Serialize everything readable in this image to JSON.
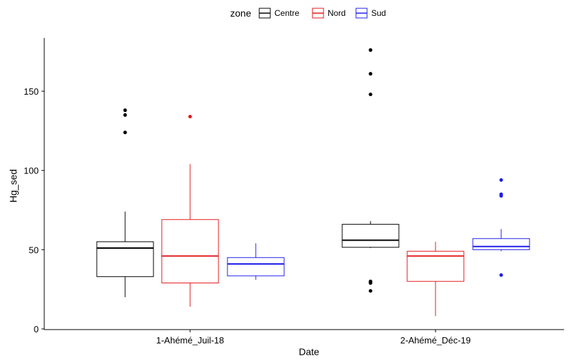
{
  "chart_data": {
    "type": "boxplot",
    "title": "",
    "xlabel": "Date",
    "ylabel": "Hg_sed",
    "ylim": [
      0,
      185
    ],
    "yticks": [
      0,
      50,
      100,
      150
    ],
    "categories": [
      "1-Ahémé_Juil-18",
      "2-Ahémé_Déc-19"
    ],
    "legend": {
      "title": "zone",
      "position": "top",
      "entries": [
        "Centre",
        "Nord",
        "Sud"
      ]
    },
    "grid": false,
    "series": [
      {
        "name": "Centre",
        "color": "#000000",
        "boxes": [
          {
            "category": "1-Ahémé_Juil-18",
            "whisker_low": 20,
            "q1": 33,
            "median": 51,
            "q3": 55,
            "whisker_high": 74,
            "outliers": [
              124,
              135,
              138
            ]
          },
          {
            "category": "2-Ahémé_Déc-19",
            "whisker_low": 51,
            "q1": 51.5,
            "median": 56,
            "q3": 66,
            "whisker_high": 68,
            "outliers": [
              24,
              29,
              30,
              148,
              161,
              176
            ]
          }
        ]
      },
      {
        "name": "Nord",
        "color": "#e31a1c",
        "boxes": [
          {
            "category": "1-Ahémé_Juil-18",
            "whisker_low": 14,
            "q1": 29,
            "median": 46,
            "q3": 69,
            "whisker_high": 104,
            "outliers": [
              134
            ]
          },
          {
            "category": "2-Ahémé_Déc-19",
            "whisker_low": 8,
            "q1": 30,
            "median": 46,
            "q3": 49,
            "whisker_high": 55,
            "outliers": []
          }
        ]
      },
      {
        "name": "Sud",
        "color": "#1f1fe8",
        "boxes": [
          {
            "category": "1-Ahémé_Juil-18",
            "whisker_low": 31,
            "q1": 33.5,
            "median": 41,
            "q3": 45,
            "whisker_high": 54,
            "outliers": []
          },
          {
            "category": "2-Ahémé_Déc-19",
            "whisker_low": 49,
            "q1": 50,
            "median": 52,
            "q3": 57,
            "whisker_high": 63,
            "outliers": [
              34,
              84,
              85,
              94
            ]
          }
        ]
      }
    ]
  }
}
